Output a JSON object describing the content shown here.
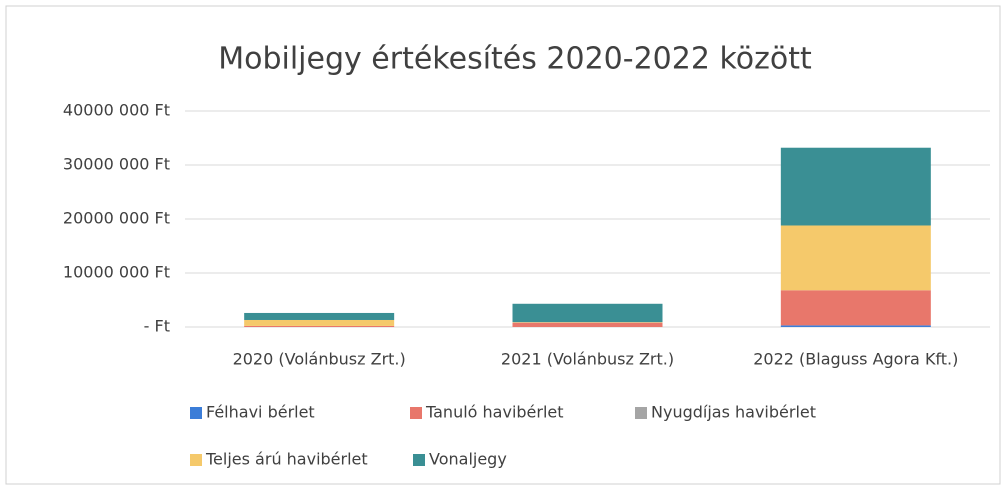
{
  "chart_data": {
    "type": "stacked_bar",
    "title": "Mobiljegy értékesítés 2020-2022 között",
    "categories": [
      "2020 (Volánbusz Zrt.)",
      "2021 (Volánbusz Zrt.)",
      "2022 (Blaguss Agora Kft.)"
    ],
    "series": [
      {
        "name": "Félhavi bérlet",
        "color": "#3b7dd8",
        "values": [
          0,
          0,
          300000
        ]
      },
      {
        "name": "Tanuló havibérlet",
        "color": "#e8776b",
        "values": [
          200000,
          800000,
          6500000
        ]
      },
      {
        "name": "Nyugdíjas havibérlet",
        "color": "#a5a5a5",
        "values": [
          0,
          0,
          0
        ]
      },
      {
        "name": "Teljes árú havibérlet",
        "color": "#f5c96b",
        "values": [
          1100000,
          100000,
          12000000
        ]
      },
      {
        "name": "Vonaljegy",
        "color": "#3a8f94",
        "values": [
          1300000,
          3400000,
          14400000
        ]
      }
    ],
    "ylim": [
      0,
      40000000
    ],
    "yticks": [
      {
        "value": 0,
        "label": "-   Ft"
      },
      {
        "value": 10000000,
        "label": "10000 000 Ft"
      },
      {
        "value": 20000000,
        "label": "20000 000 Ft"
      },
      {
        "value": 30000000,
        "label": "30000 000 Ft"
      },
      {
        "value": 40000000,
        "label": "40000 000 Ft"
      }
    ],
    "grid": true
  }
}
